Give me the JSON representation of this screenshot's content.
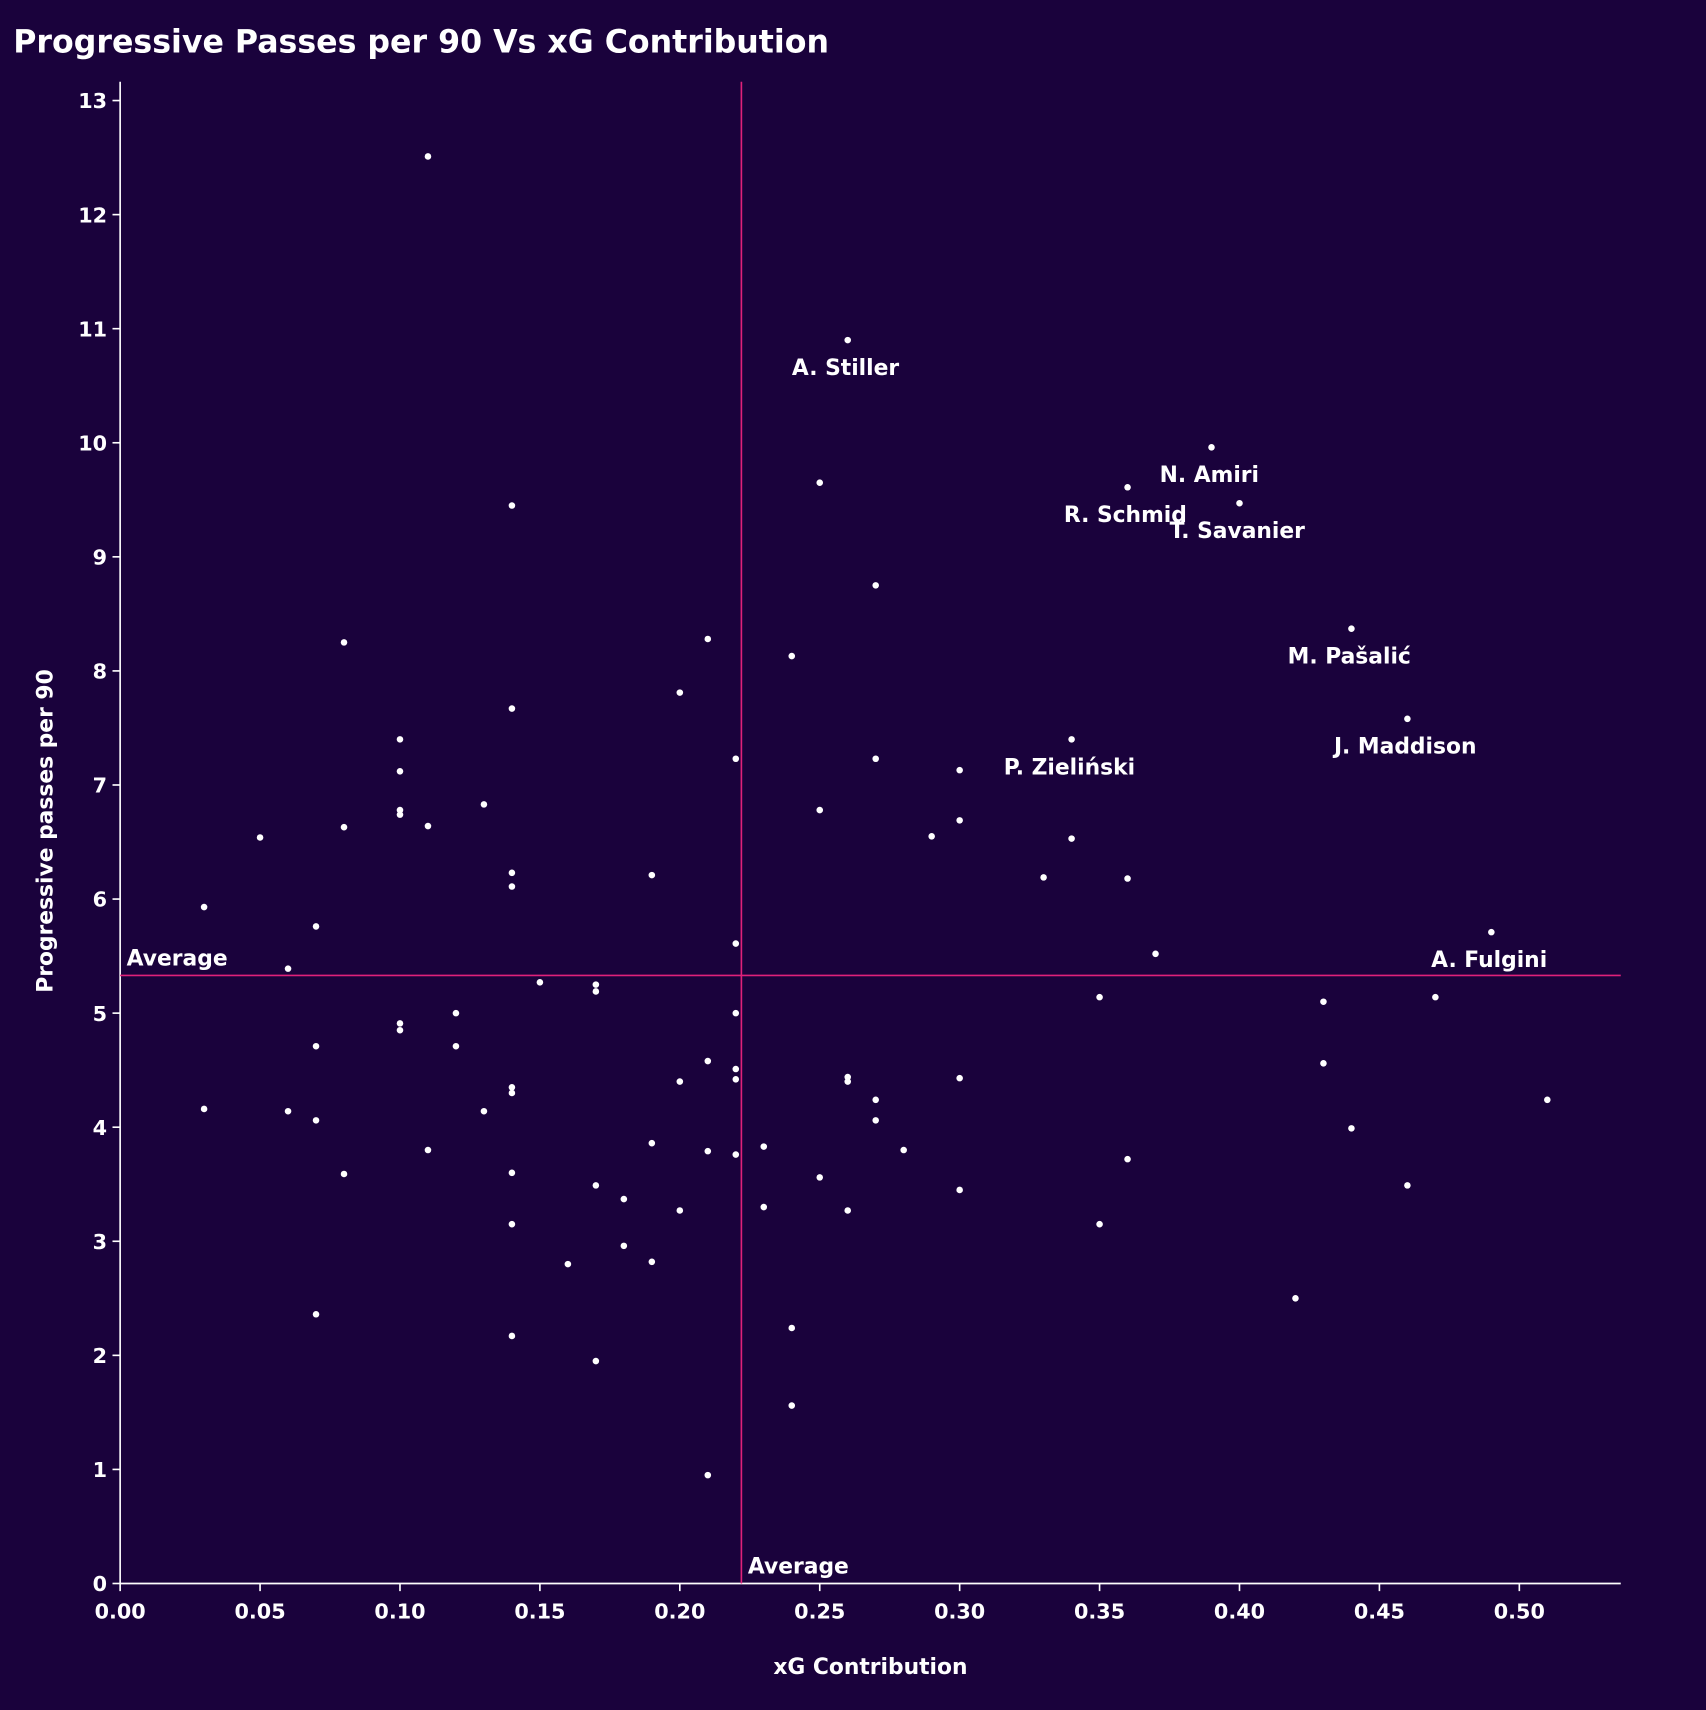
{
  "chart_data": {
    "type": "scatter",
    "title": "Progressive Passes per 90 Vs xG Contribution",
    "xlabel": "xG Contribution",
    "ylabel": "Progressive passes per 90",
    "xlim": [
      -0.01,
      0.535
    ],
    "ylim": [
      -0.15,
      13.15
    ],
    "xticks": [
      "0.00",
      "0.05",
      "0.10",
      "0.15",
      "0.20",
      "0.25",
      "0.30",
      "0.35",
      "0.40",
      "0.45",
      "0.50"
    ],
    "yticks": [
      "0",
      "1",
      "2",
      "3",
      "4",
      "5",
      "6",
      "7",
      "8",
      "9",
      "10",
      "11",
      "12",
      "13"
    ],
    "grid": false,
    "average_x": 0.222,
    "average_y": 5.33,
    "average_label_x": "Average",
    "average_label_y": "Average",
    "colors": {
      "background": "#1a023c",
      "points": "#ffffff",
      "average_lines": "#e0217a",
      "text": "#ffffff"
    },
    "points": [
      [
        0.11,
        12.51
      ],
      [
        0.26,
        10.9
      ],
      [
        0.39,
        9.96
      ],
      [
        0.36,
        9.61
      ],
      [
        0.4,
        9.47
      ],
      [
        0.25,
        9.65
      ],
      [
        0.14,
        9.45
      ],
      [
        0.27,
        8.75
      ],
      [
        0.44,
        8.37
      ],
      [
        0.21,
        8.28
      ],
      [
        0.08,
        8.25
      ],
      [
        0.24,
        8.13
      ],
      [
        0.2,
        7.81
      ],
      [
        0.14,
        7.67
      ],
      [
        0.46,
        7.58
      ],
      [
        0.1,
        7.4
      ],
      [
        0.34,
        7.4
      ],
      [
        0.22,
        7.23
      ],
      [
        0.27,
        7.23
      ],
      [
        0.1,
        7.12
      ],
      [
        0.3,
        7.13
      ],
      [
        0.13,
        6.83
      ],
      [
        0.1,
        6.78
      ],
      [
        0.1,
        6.74
      ],
      [
        0.25,
        6.78
      ],
      [
        0.3,
        6.69
      ],
      [
        0.08,
        6.63
      ],
      [
        0.11,
        6.64
      ],
      [
        0.05,
        6.54
      ],
      [
        0.29,
        6.55
      ],
      [
        0.34,
        6.53
      ],
      [
        0.14,
        6.23
      ],
      [
        0.19,
        6.21
      ],
      [
        0.33,
        6.19
      ],
      [
        0.36,
        6.18
      ],
      [
        0.14,
        6.11
      ],
      [
        0.03,
        5.93
      ],
      [
        0.07,
        5.76
      ],
      [
        0.49,
        5.71
      ],
      [
        0.22,
        5.61
      ],
      [
        0.37,
        5.52
      ],
      [
        0.06,
        5.39
      ],
      [
        0.15,
        5.27
      ],
      [
        0.17,
        5.25
      ],
      [
        0.17,
        5.19
      ],
      [
        0.35,
        5.14
      ],
      [
        0.47,
        5.14
      ],
      [
        0.43,
        5.1
      ],
      [
        0.12,
        5.0
      ],
      [
        0.22,
        5.0
      ],
      [
        0.1,
        4.91
      ],
      [
        0.1,
        4.85
      ],
      [
        0.07,
        4.71
      ],
      [
        0.12,
        4.71
      ],
      [
        0.21,
        4.58
      ],
      [
        0.43,
        4.56
      ],
      [
        0.22,
        4.51
      ],
      [
        0.26,
        4.44
      ],
      [
        0.22,
        4.42
      ],
      [
        0.26,
        4.4
      ],
      [
        0.2,
        4.4
      ],
      [
        0.3,
        4.43
      ],
      [
        0.14,
        4.35
      ],
      [
        0.14,
        4.3
      ],
      [
        0.27,
        4.24
      ],
      [
        0.51,
        4.24
      ],
      [
        0.03,
        4.16
      ],
      [
        0.06,
        4.14
      ],
      [
        0.13,
        4.14
      ],
      [
        0.07,
        4.06
      ],
      [
        0.27,
        4.06
      ],
      [
        0.44,
        3.99
      ],
      [
        0.19,
        3.86
      ],
      [
        0.23,
        3.83
      ],
      [
        0.11,
        3.8
      ],
      [
        0.28,
        3.8
      ],
      [
        0.21,
        3.79
      ],
      [
        0.22,
        3.76
      ],
      [
        0.36,
        3.72
      ],
      [
        0.08,
        3.59
      ],
      [
        0.14,
        3.6
      ],
      [
        0.25,
        3.56
      ],
      [
        0.17,
        3.49
      ],
      [
        0.46,
        3.49
      ],
      [
        0.3,
        3.45
      ],
      [
        0.18,
        3.37
      ],
      [
        0.23,
        3.3
      ],
      [
        0.2,
        3.27
      ],
      [
        0.26,
        3.27
      ],
      [
        0.14,
        3.15
      ],
      [
        0.35,
        3.15
      ],
      [
        0.18,
        2.96
      ],
      [
        0.19,
        2.82
      ],
      [
        0.16,
        2.8
      ],
      [
        0.42,
        2.5
      ],
      [
        0.07,
        2.36
      ],
      [
        0.24,
        2.24
      ],
      [
        0.14,
        2.17
      ],
      [
        0.17,
        1.95
      ],
      [
        0.24,
        1.56
      ],
      [
        0.21,
        0.95
      ]
    ],
    "annotations": [
      {
        "name": "A. Stiller",
        "x": 0.26,
        "y": 10.9
      },
      {
        "name": "N. Amiri",
        "x": 0.39,
        "y": 9.96
      },
      {
        "name": "R. Schmid",
        "x": 0.36,
        "y": 9.61
      },
      {
        "name": "T. Savanier",
        "x": 0.4,
        "y": 9.47
      },
      {
        "name": "M. Pašalić",
        "x": 0.44,
        "y": 8.37
      },
      {
        "name": "J. Maddison",
        "x": 0.46,
        "y": 7.58
      },
      {
        "name": "P. Zieliński",
        "x": 0.34,
        "y": 7.4
      },
      {
        "name": "A. Fulgini",
        "x": 0.49,
        "y": 5.71
      }
    ]
  }
}
